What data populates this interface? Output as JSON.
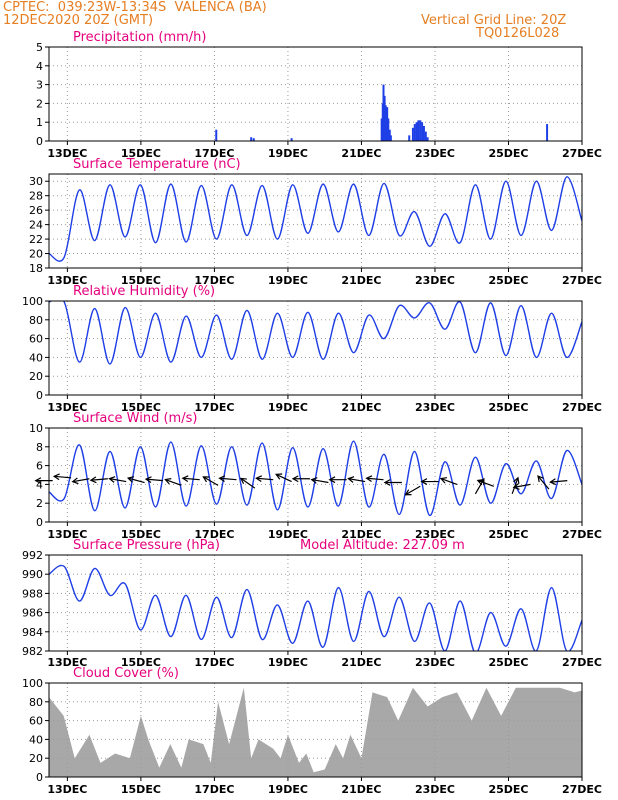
{
  "header": {
    "station": "CPTEC:  039:23W-13:34S  VALENCA (BA)",
    "datetime": "12DEC2020 20Z (GMT)",
    "gridline": "Vertical Grid Line: 20Z",
    "code": "TQ0126L028"
  },
  "colors": {
    "header": "#e67e22",
    "title": "#e6007e",
    "series": "#1f3fe6",
    "cloud": "#a8a8a8",
    "arrow": "#000000"
  },
  "chart_data": [
    {
      "type": "bar",
      "title": "Precipitation (mm/h)",
      "x_ticks": [
        "13DEC",
        "15DEC",
        "17DEC",
        "19DEC",
        "21DEC",
        "23DEC",
        "25DEC",
        "27DEC"
      ],
      "x_range_days": [
        12.5,
        27.0
      ],
      "ylim": [
        0,
        5
      ],
      "yticks": [
        0,
        1,
        2,
        3,
        4,
        5
      ],
      "grid": "dotted",
      "events": [
        {
          "x": 17.05,
          "y": 0.6
        },
        {
          "x": 18.0,
          "y": 0.2
        },
        {
          "x": 18.07,
          "y": 0.15
        },
        {
          "x": 19.1,
          "y": 0.15
        },
        {
          "x": 21.55,
          "y": 1.2
        },
        {
          "x": 21.58,
          "y": 2.0
        },
        {
          "x": 21.6,
          "y": 3.0
        },
        {
          "x": 21.63,
          "y": 2.4
        },
        {
          "x": 21.66,
          "y": 1.9
        },
        {
          "x": 21.7,
          "y": 1.8
        },
        {
          "x": 21.73,
          "y": 1.2
        },
        {
          "x": 21.77,
          "y": 0.6
        },
        {
          "x": 21.8,
          "y": 0.3
        },
        {
          "x": 22.3,
          "y": 0.3
        },
        {
          "x": 22.4,
          "y": 0.7
        },
        {
          "x": 22.45,
          "y": 0.9
        },
        {
          "x": 22.5,
          "y": 1.0
        },
        {
          "x": 22.55,
          "y": 1.1
        },
        {
          "x": 22.6,
          "y": 1.1
        },
        {
          "x": 22.65,
          "y": 1.0
        },
        {
          "x": 22.7,
          "y": 0.8
        },
        {
          "x": 22.75,
          "y": 0.5
        },
        {
          "x": 22.8,
          "y": 0.2
        },
        {
          "x": 26.05,
          "y": 0.9
        }
      ]
    },
    {
      "type": "line",
      "title": "Surface Temperature (nC)",
      "ylim": [
        18,
        31
      ],
      "yticks": [
        18,
        20,
        22,
        24,
        26,
        28,
        30
      ],
      "series": [
        {
          "values": [
            20,
            19.5,
            28.8,
            21.8,
            29.5,
            22.3,
            29.5,
            21.5,
            29.6,
            21.6,
            29.4,
            22,
            29.5,
            22.5,
            29.4,
            22,
            29.5,
            22.8,
            29.6,
            23,
            29.6,
            22.5,
            29.7,
            22.5,
            25.8,
            21,
            25.5,
            21.5,
            29.5,
            22,
            30,
            22.5,
            30,
            23.2,
            30.6,
            24.5
          ]
        }
      ]
    },
    {
      "type": "line",
      "title": "Relative Humidity (%)",
      "ylim": [
        0,
        100
      ],
      "yticks": [
        0,
        20,
        40,
        60,
        80,
        100
      ],
      "series": [
        {
          "values": [
            99,
            99,
            35,
            92,
            33,
            93,
            40,
            87,
            35,
            84,
            40,
            85,
            38,
            90,
            38,
            87,
            40,
            88,
            38,
            87,
            45,
            85,
            60,
            95,
            82,
            98,
            70,
            99,
            45,
            98,
            42,
            95,
            40,
            87,
            40,
            78
          ]
        }
      ]
    },
    {
      "type": "line",
      "title": "Surface Wind (m/s)",
      "ylim": [
        0,
        10
      ],
      "yticks": [
        0,
        2,
        4,
        6,
        8,
        10
      ],
      "series": [
        {
          "values": [
            3.2,
            2.5,
            8.2,
            1.2,
            7.5,
            1.5,
            8,
            1.6,
            8.5,
            1.7,
            8.1,
            1.9,
            8,
            1.8,
            8.4,
            1.3,
            7.9,
            1.6,
            7.8,
            1.7,
            8.6,
            1.6,
            7.2,
            0.8,
            7.5,
            0.7,
            6.4,
            1.8,
            6.9,
            2,
            6.2,
            3,
            6.5,
            2.5,
            7.6,
            4
          ]
        }
      ],
      "wind_vectors": [
        {
          "day": 12.6,
          "speed": 4.4,
          "dir_deg": 90
        },
        {
          "day": 13.1,
          "speed": 4.7,
          "dir_deg": 95
        },
        {
          "day": 13.6,
          "speed": 4.6,
          "dir_deg": 80
        },
        {
          "day": 14.1,
          "speed": 4.6,
          "dir_deg": 85
        },
        {
          "day": 14.6,
          "speed": 4.3,
          "dir_deg": 100
        },
        {
          "day": 15.1,
          "speed": 4.2,
          "dir_deg": 105
        },
        {
          "day": 15.6,
          "speed": 4.4,
          "dir_deg": 95
        },
        {
          "day": 16.1,
          "speed": 3.9,
          "dir_deg": 110
        },
        {
          "day": 16.6,
          "speed": 4.5,
          "dir_deg": 95
        },
        {
          "day": 17.1,
          "speed": 3.9,
          "dir_deg": 120
        },
        {
          "day": 17.6,
          "speed": 4.5,
          "dir_deg": 95
        },
        {
          "day": 18.1,
          "speed": 3.6,
          "dir_deg": 125
        },
        {
          "day": 18.6,
          "speed": 4.5,
          "dir_deg": 95
        },
        {
          "day": 19.1,
          "speed": 4.3,
          "dir_deg": 115
        },
        {
          "day": 19.6,
          "speed": 4.6,
          "dir_deg": 90
        },
        {
          "day": 20.1,
          "speed": 4.2,
          "dir_deg": 100
        },
        {
          "day": 20.6,
          "speed": 4.5,
          "dir_deg": 90
        },
        {
          "day": 21.1,
          "speed": 4.3,
          "dir_deg": 100
        },
        {
          "day": 21.6,
          "speed": 4.5,
          "dir_deg": 95
        },
        {
          "day": 22.1,
          "speed": 4.2,
          "dir_deg": 90
        },
        {
          "day": 22.6,
          "speed": 3.8,
          "dir_deg": 60
        },
        {
          "day": 23.1,
          "speed": 4.3,
          "dir_deg": 90
        },
        {
          "day": 23.6,
          "speed": 4.0,
          "dir_deg": 110
        },
        {
          "day": 24.1,
          "speed": 3.0,
          "dir_deg": 210
        },
        {
          "day": 24.6,
          "speed": 3.8,
          "dir_deg": 110
        },
        {
          "day": 25.1,
          "speed": 3.0,
          "dir_deg": 200
        },
        {
          "day": 25.6,
          "speed": 4.0,
          "dir_deg": 80
        },
        {
          "day": 26.1,
          "speed": 3.5,
          "dir_deg": 140
        },
        {
          "day": 26.6,
          "speed": 4.4,
          "dir_deg": 85
        }
      ]
    },
    {
      "type": "line",
      "title": "Surface Pressure (hPa)",
      "annotation": "Model Altitude: 227.09 m",
      "ylim": [
        982,
        992
      ],
      "yticks": [
        982,
        984,
        986,
        988,
        990,
        992
      ],
      "series": [
        {
          "values": [
            990,
            990.8,
            987.2,
            990.6,
            987.8,
            989,
            984.2,
            987.8,
            983.5,
            987.8,
            983.2,
            987.6,
            983.4,
            988.4,
            983.2,
            986.8,
            982.8,
            987.2,
            982.4,
            988.6,
            983,
            988.2,
            983.5,
            987.6,
            983,
            987,
            982,
            987.2,
            981.8,
            986,
            982.5,
            986.4,
            982,
            988.6,
            982,
            985.2
          ]
        }
      ]
    },
    {
      "type": "area",
      "title": "Cloud Cover (%)",
      "ylim": [
        0,
        100
      ],
      "yticks": [
        0,
        20,
        40,
        60,
        80,
        100
      ],
      "x": [
        12.5,
        12.9,
        13.2,
        13.6,
        13.9,
        14.3,
        14.7,
        15.0,
        15.2,
        15.5,
        15.8,
        16.1,
        16.3,
        16.7,
        16.9,
        17.1,
        17.4,
        17.8,
        18.0,
        18.2,
        18.6,
        18.8,
        19.0,
        19.3,
        19.5,
        19.7,
        20.0,
        20.3,
        20.5,
        20.7,
        21.0,
        21.3,
        21.7,
        22.0,
        22.4,
        22.8,
        23.2,
        23.6,
        24.0,
        24.4,
        24.8,
        25.2,
        25.6,
        26.0,
        26.4,
        26.8,
        27.0
      ],
      "values": [
        85,
        65,
        20,
        45,
        15,
        25,
        20,
        65,
        40,
        10,
        35,
        10,
        40,
        35,
        15,
        80,
        35,
        95,
        20,
        40,
        30,
        20,
        45,
        15,
        25,
        5,
        8,
        35,
        20,
        45,
        20,
        90,
        85,
        60,
        95,
        75,
        85,
        90,
        60,
        95,
        65,
        95,
        95,
        95,
        95,
        90,
        92
      ]
    }
  ]
}
